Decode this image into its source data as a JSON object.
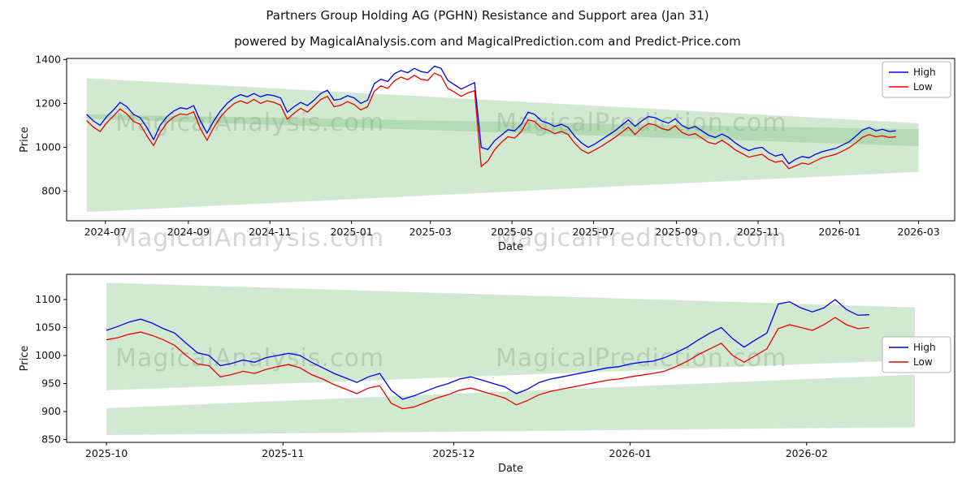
{
  "header": {
    "title": "Partners Group Holding AG (PGHN) Resistance and Support area (Jan 31)",
    "subtitle": "powered by MagicalAnalysis.com and MagicalPrediction.com and Predict-Price.com",
    "watermark_analysis": "MagicalAnalysis.com",
    "watermark_prediction": "MagicalPrediction.com"
  },
  "chart_data": [
    {
      "type": "line",
      "title": "",
      "xlabel": "Date",
      "ylabel": "Price",
      "legend_position": "upper right",
      "grid": false,
      "band_color": "#7cbf7c",
      "x_domain": [
        "2024-06-02",
        "2026-03-28"
      ],
      "y_domain": [
        665,
        1405
      ],
      "x_ticks": [
        "2024-07",
        "2024-09",
        "2024-11",
        "2025-01",
        "2025-03",
        "2025-05",
        "2025-07",
        "2025-09",
        "2025-11",
        "2026-01",
        "2026-03"
      ],
      "y_ticks": [
        800,
        1000,
        1200,
        1400
      ],
      "bands": [
        {
          "name": "resistance",
          "x": [
            "2024-06-17",
            "2026-03-01"
          ],
          "top": [
            1315,
            1110
          ],
          "bottom": [
            1130,
            1005
          ]
        },
        {
          "name": "support",
          "x": [
            "2024-06-17",
            "2026-03-01"
          ],
          "top": [
            1150,
            1082
          ],
          "bottom": [
            705,
            888
          ]
        }
      ],
      "x": [
        "2024-06-17",
        "2024-06-22",
        "2024-06-27",
        "2024-07-02",
        "2024-07-07",
        "2024-07-12",
        "2024-07-17",
        "2024-07-22",
        "2024-07-27",
        "2024-08-01",
        "2024-08-06",
        "2024-08-11",
        "2024-08-16",
        "2024-08-21",
        "2024-08-26",
        "2024-08-31",
        "2024-09-05",
        "2024-09-10",
        "2024-09-15",
        "2024-09-20",
        "2024-09-25",
        "2024-09-30",
        "2024-10-05",
        "2024-10-10",
        "2024-10-15",
        "2024-10-20",
        "2024-10-25",
        "2024-10-30",
        "2024-11-04",
        "2024-11-09",
        "2024-11-14",
        "2024-11-19",
        "2024-11-24",
        "2024-11-29",
        "2024-12-04",
        "2024-12-09",
        "2024-12-14",
        "2024-12-19",
        "2024-12-24",
        "2024-12-29",
        "2025-01-03",
        "2025-01-08",
        "2025-01-13",
        "2025-01-18",
        "2025-01-23",
        "2025-01-28",
        "2025-02-02",
        "2025-02-07",
        "2025-02-12",
        "2025-02-17",
        "2025-02-22",
        "2025-02-27",
        "2025-03-04",
        "2025-03-09",
        "2025-03-14",
        "2025-03-19",
        "2025-03-24",
        "2025-03-29",
        "2025-04-03",
        "2025-04-08",
        "2025-04-13",
        "2025-04-18",
        "2025-04-23",
        "2025-04-28",
        "2025-05-03",
        "2025-05-08",
        "2025-05-13",
        "2025-05-18",
        "2025-05-23",
        "2025-05-28",
        "2025-06-02",
        "2025-06-07",
        "2025-06-12",
        "2025-06-17",
        "2025-06-22",
        "2025-06-27",
        "2025-07-02",
        "2025-07-07",
        "2025-07-12",
        "2025-07-17",
        "2025-07-22",
        "2025-07-27",
        "2025-08-01",
        "2025-08-06",
        "2025-08-11",
        "2025-08-16",
        "2025-08-21",
        "2025-08-26",
        "2025-08-31",
        "2025-09-05",
        "2025-09-10",
        "2025-09-15",
        "2025-09-20",
        "2025-09-25",
        "2025-09-30",
        "2025-10-05",
        "2025-10-10",
        "2025-10-15",
        "2025-10-20",
        "2025-10-25",
        "2025-10-30",
        "2025-11-04",
        "2025-11-09",
        "2025-11-14",
        "2025-11-19",
        "2025-11-24",
        "2025-11-29",
        "2025-12-04",
        "2025-12-09",
        "2025-12-14",
        "2025-12-19",
        "2025-12-24",
        "2025-12-29",
        "2026-01-03",
        "2026-01-08",
        "2026-01-13",
        "2026-01-18",
        "2026-01-23",
        "2026-01-28",
        "2026-02-02",
        "2026-02-07",
        "2026-02-12"
      ],
      "series": [
        {
          "name": "High",
          "color": "#0000ee",
          "values": [
            1150,
            1120,
            1100,
            1140,
            1170,
            1205,
            1185,
            1150,
            1135,
            1090,
            1035,
            1100,
            1140,
            1165,
            1180,
            1175,
            1190,
            1120,
            1065,
            1120,
            1165,
            1200,
            1225,
            1240,
            1230,
            1245,
            1230,
            1240,
            1235,
            1225,
            1160,
            1185,
            1205,
            1190,
            1215,
            1245,
            1260,
            1215,
            1220,
            1235,
            1225,
            1200,
            1215,
            1290,
            1310,
            1300,
            1335,
            1350,
            1340,
            1360,
            1345,
            1340,
            1370,
            1360,
            1305,
            1285,
            1265,
            1280,
            1295,
            1000,
            990,
            1030,
            1055,
            1080,
            1075,
            1105,
            1160,
            1150,
            1120,
            1110,
            1095,
            1105,
            1090,
            1050,
            1020,
            1000,
            1015,
            1035,
            1055,
            1075,
            1100,
            1125,
            1095,
            1120,
            1140,
            1135,
            1120,
            1110,
            1130,
            1100,
            1085,
            1095,
            1075,
            1055,
            1045,
            1060,
            1045,
            1020,
            1000,
            985,
            995,
            1000,
            975,
            960,
            968,
            925,
            945,
            958,
            952,
            968,
            980,
            988,
            995,
            1010,
            1025,
            1050,
            1078,
            1090,
            1075,
            1082,
            1072,
            1075
          ]
        },
        {
          "name": "Low",
          "color": "#ee0000",
          "values": [
            1122,
            1092,
            1072,
            1112,
            1142,
            1175,
            1152,
            1118,
            1105,
            1052,
            1008,
            1068,
            1112,
            1138,
            1152,
            1148,
            1162,
            1085,
            1032,
            1090,
            1138,
            1172,
            1198,
            1212,
            1200,
            1218,
            1200,
            1212,
            1205,
            1192,
            1128,
            1155,
            1178,
            1160,
            1188,
            1218,
            1232,
            1185,
            1192,
            1208,
            1195,
            1170,
            1185,
            1255,
            1280,
            1268,
            1302,
            1320,
            1308,
            1328,
            1310,
            1305,
            1338,
            1325,
            1268,
            1252,
            1232,
            1248,
            1258,
            912,
            938,
            988,
            1022,
            1048,
            1042,
            1072,
            1125,
            1118,
            1088,
            1078,
            1062,
            1072,
            1058,
            1018,
            988,
            972,
            988,
            1005,
            1025,
            1045,
            1068,
            1092,
            1058,
            1088,
            1108,
            1102,
            1085,
            1078,
            1098,
            1068,
            1055,
            1062,
            1042,
            1022,
            1015,
            1032,
            1012,
            988,
            972,
            955,
            962,
            968,
            945,
            932,
            938,
            902,
            915,
            928,
            922,
            938,
            952,
            960,
            968,
            982,
            998,
            1020,
            1045,
            1058,
            1048,
            1052,
            1045,
            1048
          ]
        }
      ]
    },
    {
      "type": "line",
      "title": "",
      "xlabel": "Date",
      "ylabel": "Price",
      "legend_position": "center right",
      "grid": false,
      "band_color": "#7cbf7c",
      "x_domain": [
        "2025-09-24",
        "2026-02-27"
      ],
      "y_domain": [
        845,
        1145
      ],
      "x_ticks": [
        "2025-10",
        "2025-11",
        "2025-12",
        "2026-01",
        "2026-02"
      ],
      "y_ticks": [
        850,
        900,
        950,
        1000,
        1050,
        1100
      ],
      "bands": [
        {
          "name": "resistance",
          "x": [
            "2025-10-01",
            "2026-02-20"
          ],
          "top": [
            1130,
            1086
          ],
          "bottom": [
            938,
            992
          ]
        },
        {
          "name": "support",
          "x": [
            "2025-10-01",
            "2026-02-20"
          ],
          "top": [
            906,
            966
          ],
          "bottom": [
            858,
            872
          ]
        }
      ],
      "x": [
        "2025-10-01",
        "2025-10-03",
        "2025-10-05",
        "2025-10-07",
        "2025-10-09",
        "2025-10-11",
        "2025-10-13",
        "2025-10-15",
        "2025-10-17",
        "2025-10-19",
        "2025-10-21",
        "2025-10-23",
        "2025-10-25",
        "2025-10-27",
        "2025-10-29",
        "2025-10-31",
        "2025-11-02",
        "2025-11-04",
        "2025-11-06",
        "2025-11-08",
        "2025-11-10",
        "2025-11-12",
        "2025-11-14",
        "2025-11-16",
        "2025-11-18",
        "2025-11-20",
        "2025-11-22",
        "2025-11-24",
        "2025-11-26",
        "2025-11-28",
        "2025-11-30",
        "2025-12-02",
        "2025-12-04",
        "2025-12-06",
        "2025-12-08",
        "2025-12-10",
        "2025-12-12",
        "2025-12-14",
        "2025-12-16",
        "2025-12-18",
        "2025-12-20",
        "2025-12-22",
        "2025-12-24",
        "2025-12-26",
        "2025-12-28",
        "2025-12-30",
        "2026-01-01",
        "2026-01-03",
        "2026-01-05",
        "2026-01-07",
        "2026-01-09",
        "2026-01-11",
        "2026-01-13",
        "2026-01-15",
        "2026-01-17",
        "2026-01-19",
        "2026-01-21",
        "2026-01-23",
        "2026-01-25",
        "2026-01-27",
        "2026-01-29",
        "2026-01-31",
        "2026-02-02",
        "2026-02-04",
        "2026-02-06",
        "2026-02-08",
        "2026-02-10",
        "2026-02-12"
      ],
      "series": [
        {
          "name": "High",
          "color": "#0000ee",
          "values": [
            1045,
            1052,
            1060,
            1065,
            1058,
            1048,
            1040,
            1022,
            1005,
            1000,
            982,
            986,
            992,
            988,
            996,
            1000,
            1004,
            1000,
            988,
            978,
            968,
            960,
            952,
            962,
            968,
            938,
            922,
            928,
            936,
            944,
            950,
            958,
            962,
            956,
            950,
            944,
            932,
            940,
            952,
            958,
            962,
            966,
            970,
            974,
            978,
            980,
            985,
            988,
            990,
            996,
            1005,
            1015,
            1028,
            1040,
            1050,
            1030,
            1015,
            1028,
            1040,
            1092,
            1096,
            1085,
            1078,
            1085,
            1100,
            1082,
            1072,
            1073
          ]
        },
        {
          "name": "Low",
          "color": "#ee0000",
          "values": [
            1028,
            1032,
            1038,
            1042,
            1036,
            1028,
            1018,
            1000,
            985,
            982,
            962,
            966,
            972,
            968,
            975,
            980,
            984,
            978,
            966,
            958,
            948,
            940,
            932,
            942,
            946,
            915,
            905,
            908,
            916,
            924,
            930,
            938,
            942,
            936,
            930,
            924,
            912,
            920,
            930,
            936,
            940,
            944,
            948,
            952,
            956,
            958,
            962,
            965,
            968,
            972,
            980,
            990,
            1002,
            1012,
            1022,
            1000,
            988,
            1000,
            1012,
            1048,
            1055,
            1050,
            1045,
            1055,
            1068,
            1055,
            1048,
            1050
          ]
        }
      ]
    }
  ]
}
